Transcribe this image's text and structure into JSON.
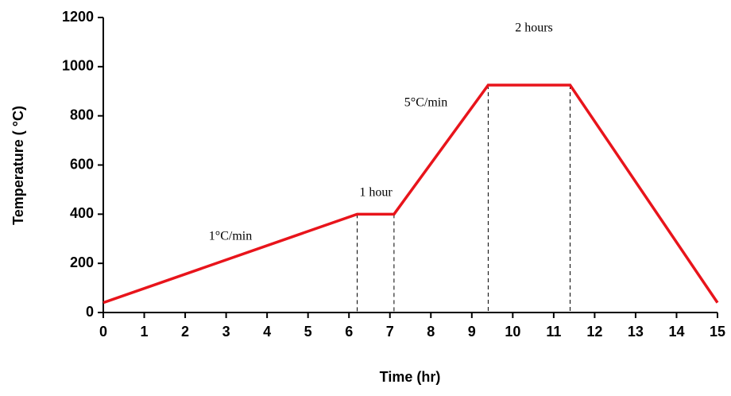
{
  "chart_data": {
    "type": "line",
    "x_label": "Time (hr)",
    "y_label": "Temperature ( °C)",
    "annotations": [
      "1°C/min",
      "1 hour",
      "5°C/min",
      "2 hours"
    ],
    "x": [
      0,
      6.2,
      7.1,
      9.4,
      11.4,
      15
    ],
    "series": [
      {
        "color": "#e8141b",
        "values": [
          40,
          400,
          400,
          925,
          925,
          40
        ]
      }
    ],
    "xlim": [
      0,
      15
    ],
    "xticks": [
      0,
      1,
      2,
      3,
      4,
      5,
      6,
      7,
      8,
      9,
      10,
      11,
      12,
      13,
      14,
      15
    ],
    "ylim": [
      0,
      1200
    ],
    "yticks": [
      0,
      200,
      400,
      600,
      800,
      1000,
      1200
    ],
    "dashed_drops": true
  }
}
